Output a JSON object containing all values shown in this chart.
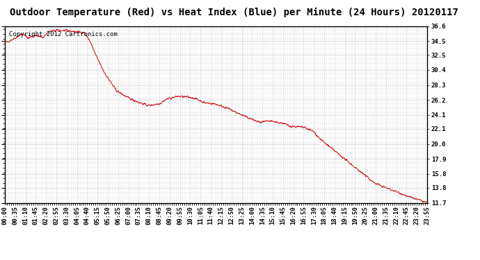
{
  "title": "Outdoor Temperature (Red) vs Heat Index (Blue) per Minute (24 Hours) 20120117",
  "copyright_text": "Copyright 2012 Cartronics.com",
  "ylabel_right_values": [
    36.6,
    34.5,
    32.5,
    30.4,
    28.3,
    26.2,
    24.1,
    22.1,
    20.0,
    17.9,
    15.8,
    13.8,
    11.7
  ],
  "ymin": 11.7,
  "ymax": 36.6,
  "line_color": "#cc0000",
  "background_color": "#ffffff",
  "grid_color": "#aaaaaa",
  "title_fontsize": 10,
  "copyright_fontsize": 6.5,
  "tick_fontsize": 6.5,
  "x_tick_labels": [
    "00:00",
    "00:35",
    "01:10",
    "01:45",
    "02:20",
    "02:55",
    "03:30",
    "04:05",
    "04:40",
    "05:15",
    "05:50",
    "06:25",
    "07:00",
    "07:35",
    "08:10",
    "08:45",
    "09:20",
    "09:55",
    "10:30",
    "11:05",
    "11:40",
    "12:15",
    "12:50",
    "13:25",
    "14:00",
    "14:35",
    "15:10",
    "15:45",
    "16:20",
    "16:55",
    "17:30",
    "18:05",
    "18:40",
    "19:15",
    "19:50",
    "20:25",
    "21:00",
    "21:35",
    "22:10",
    "22:45",
    "23:20",
    "23:55"
  ],
  "n_minutes": 1441,
  "curve_keypoints": [
    [
      0,
      34.2
    ],
    [
      30,
      34.8
    ],
    [
      60,
      35.5
    ],
    [
      80,
      34.9
    ],
    [
      100,
      35.3
    ],
    [
      130,
      35.0
    ],
    [
      150,
      35.8
    ],
    [
      160,
      35.9
    ],
    [
      180,
      36.0
    ],
    [
      220,
      35.9
    ],
    [
      240,
      35.8
    ],
    [
      270,
      35.7
    ],
    [
      290,
      34.5
    ],
    [
      310,
      32.5
    ],
    [
      340,
      30.0
    ],
    [
      380,
      27.5
    ],
    [
      420,
      26.5
    ],
    [
      460,
      25.8
    ],
    [
      490,
      25.4
    ],
    [
      530,
      25.7
    ],
    [
      550,
      26.3
    ],
    [
      570,
      26.5
    ],
    [
      590,
      26.7
    ],
    [
      620,
      26.6
    ],
    [
      640,
      26.5
    ],
    [
      660,
      26.2
    ],
    [
      680,
      25.8
    ],
    [
      700,
      25.7
    ],
    [
      720,
      25.6
    ],
    [
      760,
      25.0
    ],
    [
      800,
      24.2
    ],
    [
      840,
      23.5
    ],
    [
      870,
      23.0
    ],
    [
      900,
      23.2
    ],
    [
      920,
      23.1
    ],
    [
      950,
      22.9
    ],
    [
      970,
      22.5
    ],
    [
      1000,
      22.4
    ],
    [
      1020,
      22.3
    ],
    [
      1050,
      21.8
    ],
    [
      1080,
      20.5
    ],
    [
      1110,
      19.5
    ],
    [
      1140,
      18.5
    ],
    [
      1170,
      17.5
    ],
    [
      1200,
      16.5
    ],
    [
      1230,
      15.5
    ],
    [
      1260,
      14.5
    ],
    [
      1300,
      13.8
    ],
    [
      1340,
      13.2
    ],
    [
      1380,
      12.5
    ],
    [
      1420,
      12.0
    ],
    [
      1440,
      11.7
    ]
  ]
}
